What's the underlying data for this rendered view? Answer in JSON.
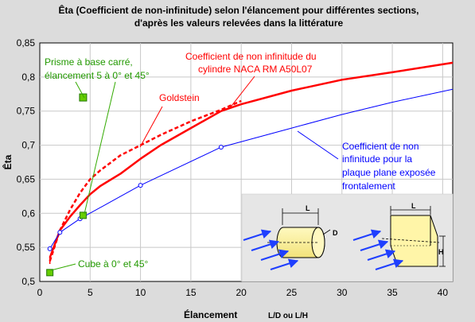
{
  "chart_data": {
    "type": "line",
    "title": "Êta (Coefficient de non-infinitude) selon l'élancement pour différentes sections,",
    "subtitle": "d'après les valeurs relevées dans la littérature",
    "xlabel": "Élancement",
    "xlabel_suffix": "L/D ou L/H",
    "ylabel": "Êta",
    "xlim": [
      0,
      41
    ],
    "ylim": [
      0.5,
      0.85
    ],
    "x_ticks": [
      0,
      5,
      10,
      15,
      20,
      25,
      30,
      35,
      40
    ],
    "y_ticks": [
      "0,5",
      "0,55",
      "0,6",
      "0,65",
      "0,7",
      "0,75",
      "0,8",
      "0,85"
    ],
    "grid": true,
    "series": [
      {
        "name": "Coefficient de non infinitude du cylindre NACA RM A50L07",
        "color": "#ff0000",
        "style": "solid",
        "x": [
          1,
          1.5,
          2,
          3,
          4,
          5,
          6,
          8,
          10,
          12,
          15,
          18,
          20,
          25,
          30,
          35,
          41
        ],
        "y": [
          0.535,
          0.555,
          0.575,
          0.595,
          0.612,
          0.628,
          0.64,
          0.658,
          0.68,
          0.7,
          0.725,
          0.75,
          0.76,
          0.78,
          0.796,
          0.807,
          0.821
        ]
      },
      {
        "name": "Goldstein",
        "color": "#ff0000",
        "style": "dashed",
        "x": [
          1,
          2,
          3,
          4,
          5,
          6,
          8,
          10,
          12,
          15,
          18,
          20
        ],
        "y": [
          0.53,
          0.575,
          0.605,
          0.63,
          0.65,
          0.663,
          0.685,
          0.7,
          0.715,
          0.735,
          0.752,
          0.765
        ]
      },
      {
        "name": "Coefficient de non infinitude pour la plaque plane exposée frontalement",
        "color": "#0000ff",
        "style": "solid",
        "markers": [
          1,
          2,
          4,
          10,
          18
        ],
        "x": [
          1,
          2,
          4,
          10,
          18,
          25,
          30,
          35,
          41
        ],
        "y": [
          0.548,
          0.572,
          0.592,
          0.641,
          0.697,
          0.725,
          0.745,
          0.763,
          0.782
        ]
      },
      {
        "name": "Prisme à base carré, élancement 5 à 0° et 45°",
        "color": "#66cc00",
        "style": "markers",
        "x": [
          4.3,
          4.3
        ],
        "y": [
          0.77,
          0.597
        ]
      },
      {
        "name": "Cube à 0° et 45°",
        "color": "#66cc00",
        "style": "markers",
        "x": [
          1
        ],
        "y": [
          0.513
        ]
      }
    ],
    "annotations": {
      "prisme": [
        "Prisme à base carré,",
        "élancement 5 à 0° et 45°"
      ],
      "cube": "Cube à 0° et 45°",
      "goldstein": "Goldstein",
      "cylindre": [
        "Coefficient de non infinitude du",
        "cylindre NACA RM A50L07"
      ],
      "plaque": [
        "Coefficient de non",
        "infinitude pour la",
        "plaque plane exposée",
        "frontalement"
      ],
      "inset_labels": [
        "L",
        "D",
        "L",
        "H"
      ]
    }
  }
}
